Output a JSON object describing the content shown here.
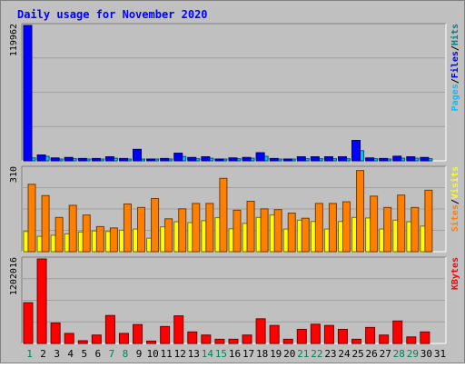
{
  "chart_data": {
    "type": "bar",
    "title": "Daily usage for November 2020",
    "categories": [
      "1",
      "2",
      "3",
      "4",
      "5",
      "6",
      "7",
      "8",
      "9",
      "10",
      "11",
      "12",
      "13",
      "14",
      "15",
      "16",
      "17",
      "18",
      "19",
      "20",
      "21",
      "22",
      "23",
      "24",
      "25",
      "26",
      "27",
      "28",
      "29",
      "30",
      "31"
    ],
    "weekend_days": [
      "1",
      "7",
      "8",
      "14",
      "15",
      "21",
      "22",
      "28",
      "29"
    ],
    "panels": [
      {
        "name": "hits-files-pages",
        "max_label": "119962",
        "ylim": [
          0,
          119962
        ],
        "legend": [
          "Pages",
          "Files",
          "Hits"
        ],
        "series": [
          {
            "name": "Pages",
            "color": "#00C0FF",
            "values": [
              2600,
              4000,
              1600,
              1900,
              1400,
              1400,
              2300,
              1400,
              900,
              900,
              1000,
              3800,
              1900,
              2300,
              900,
              1900,
              2300,
              4000,
              1400,
              700,
              1900,
              1900,
              1900,
              1900,
              9000,
              1900,
              1400,
              2300,
              2300,
              1900,
              0
            ]
          },
          {
            "name": "Files",
            "color": "#0000FF",
            "values": [
              119962,
              5200,
              2600,
              3000,
              2100,
              2100,
              3600,
              2100,
              10200,
              1600,
              2100,
              6800,
              3000,
              3600,
              1600,
              2600,
              3000,
              7200,
              2100,
              1200,
              3600,
              3600,
              3600,
              3600,
              18100,
              2600,
              2100,
              4100,
              3600,
              3000,
              0
            ]
          }
        ]
      },
      {
        "name": "visits-sites",
        "max_label": "310",
        "ylim": [
          0,
          310
        ],
        "legend": [
          "Sites",
          "Visits"
        ],
        "series": [
          {
            "name": "Visits",
            "color": "#FFFF00",
            "values": [
              75,
              57,
              61,
              66,
              73,
              77,
              75,
              80,
              84,
              50,
              92,
              111,
              108,
              115,
              126,
              85,
              105,
              127,
              136,
              84,
              117,
              112,
              84,
              112,
              127,
              125,
              84,
              117,
              111,
              95,
              0
            ]
          },
          {
            "name": "Sites",
            "color": "#FF8000",
            "values": [
              250,
              208,
              127,
              172,
              136,
              93,
              88,
              177,
              164,
              197,
              122,
              159,
              179,
              179,
              272,
              154,
              187,
              159,
              156,
              143,
              124,
              179,
              179,
              185,
              301,
              206,
              164,
              210,
              164,
              228,
              0
            ]
          }
        ]
      },
      {
        "name": "kbytes",
        "max_label": "1202016",
        "ylim": [
          0,
          1202016
        ],
        "legend": [
          "KBytes"
        ],
        "series": [
          {
            "name": "KBytes",
            "color": "#FF0000",
            "values": [
              580000,
              1202016,
              292000,
              143000,
              39000,
              120000,
              398000,
              143000,
              269000,
              34000,
              241000,
              393000,
              164000,
              120000,
              60000,
              60000,
              120000,
              351000,
              256000,
              60000,
              201000,
              274000,
              256000,
              201000,
              60000,
              228000,
              120000,
              320000,
              93000,
              164000,
              0
            ]
          }
        ]
      }
    ]
  }
}
